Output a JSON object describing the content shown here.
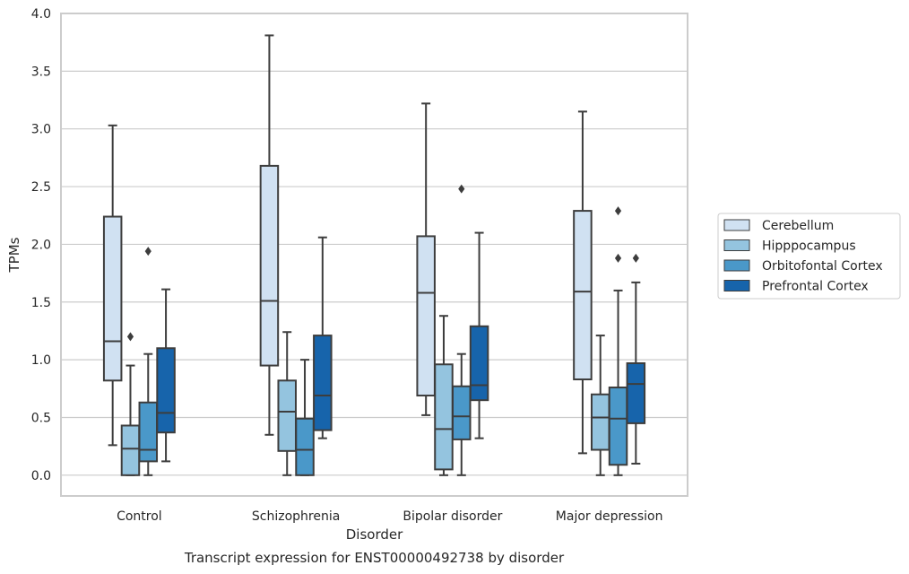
{
  "chart_data": {
    "type": "box",
    "xlabel": "Disorder",
    "ylabel": "TPMs",
    "caption": "Transcript expression for ENST00000492738 by disorder",
    "categories": [
      "Control",
      "Schizophrenia",
      "Bipolar disorder",
      "Major depression"
    ],
    "ylim": [
      -0.18,
      4.0
    ],
    "yticks": [
      0.0,
      0.5,
      1.0,
      1.5,
      2.0,
      2.5,
      3.0,
      3.5,
      4.0
    ],
    "ytick_labels": [
      "0.0",
      "0.5",
      "1.0",
      "1.5",
      "2.0",
      "2.5",
      "3.0",
      "3.5",
      "4.0"
    ],
    "grid": "horizontal",
    "legend": {
      "position": "right",
      "entries": [
        "Cerebellum",
        "Hipppocampus",
        "Orbitofontal Cortex",
        "Prefrontal Cortex"
      ]
    },
    "colors": {
      "Cerebellum": "#d0e1f2",
      "Hipppocampus": "#94c4df",
      "Orbitofontal Cortex": "#4a98c9",
      "Prefrontal Cortex": "#1764ab",
      "line": "#3d3d3d",
      "grid": "#cccccc"
    },
    "series": [
      {
        "name": "Cerebellum",
        "boxes": [
          {
            "whislo": 0.26,
            "q1": 0.82,
            "med": 1.16,
            "q3": 2.24,
            "whishi": 3.03,
            "fliers": []
          },
          {
            "whislo": 0.35,
            "q1": 0.95,
            "med": 1.51,
            "q3": 2.68,
            "whishi": 3.81,
            "fliers": []
          },
          {
            "whislo": 0.52,
            "q1": 0.69,
            "med": 1.58,
            "q3": 2.07,
            "whishi": 3.22,
            "fliers": []
          },
          {
            "whislo": 0.19,
            "q1": 0.83,
            "med": 1.59,
            "q3": 2.29,
            "whishi": 3.15,
            "fliers": []
          }
        ]
      },
      {
        "name": "Hipppocampus",
        "boxes": [
          {
            "whislo": 0.0,
            "q1": 0.0,
            "med": 0.23,
            "q3": 0.43,
            "whishi": 0.95,
            "fliers": [
              1.2
            ]
          },
          {
            "whislo": 0.0,
            "q1": 0.21,
            "med": 0.55,
            "q3": 0.82,
            "whishi": 1.24,
            "fliers": []
          },
          {
            "whislo": 0.0,
            "q1": 0.05,
            "med": 0.4,
            "q3": 0.96,
            "whishi": 1.38,
            "fliers": []
          },
          {
            "whislo": 0.0,
            "q1": 0.22,
            "med": 0.5,
            "q3": 0.7,
            "whishi": 1.21,
            "fliers": []
          }
        ]
      },
      {
        "name": "Orbitofontal Cortex",
        "boxes": [
          {
            "whislo": 0.0,
            "q1": 0.12,
            "med": 0.22,
            "q3": 0.63,
            "whishi": 1.05,
            "fliers": [
              1.94
            ]
          },
          {
            "whislo": 0.0,
            "q1": 0.0,
            "med": 0.22,
            "q3": 0.49,
            "whishi": 1.0,
            "fliers": []
          },
          {
            "whislo": 0.0,
            "q1": 0.31,
            "med": 0.51,
            "q3": 0.77,
            "whishi": 1.05,
            "fliers": [
              2.48
            ]
          },
          {
            "whislo": 0.0,
            "q1": 0.09,
            "med": 0.49,
            "q3": 0.76,
            "whishi": 1.6,
            "fliers": [
              1.88,
              2.29
            ]
          }
        ]
      },
      {
        "name": "Prefrontal Cortex",
        "boxes": [
          {
            "whislo": 0.12,
            "q1": 0.37,
            "med": 0.54,
            "q3": 1.1,
            "whishi": 1.61,
            "fliers": []
          },
          {
            "whislo": 0.32,
            "q1": 0.39,
            "med": 0.69,
            "q3": 1.21,
            "whishi": 2.06,
            "fliers": []
          },
          {
            "whislo": 0.32,
            "q1": 0.65,
            "med": 0.78,
            "q3": 1.29,
            "whishi": 2.1,
            "fliers": []
          },
          {
            "whislo": 0.1,
            "q1": 0.45,
            "med": 0.79,
            "q3": 0.97,
            "whishi": 1.67,
            "fliers": [
              1.88
            ]
          }
        ]
      }
    ]
  }
}
